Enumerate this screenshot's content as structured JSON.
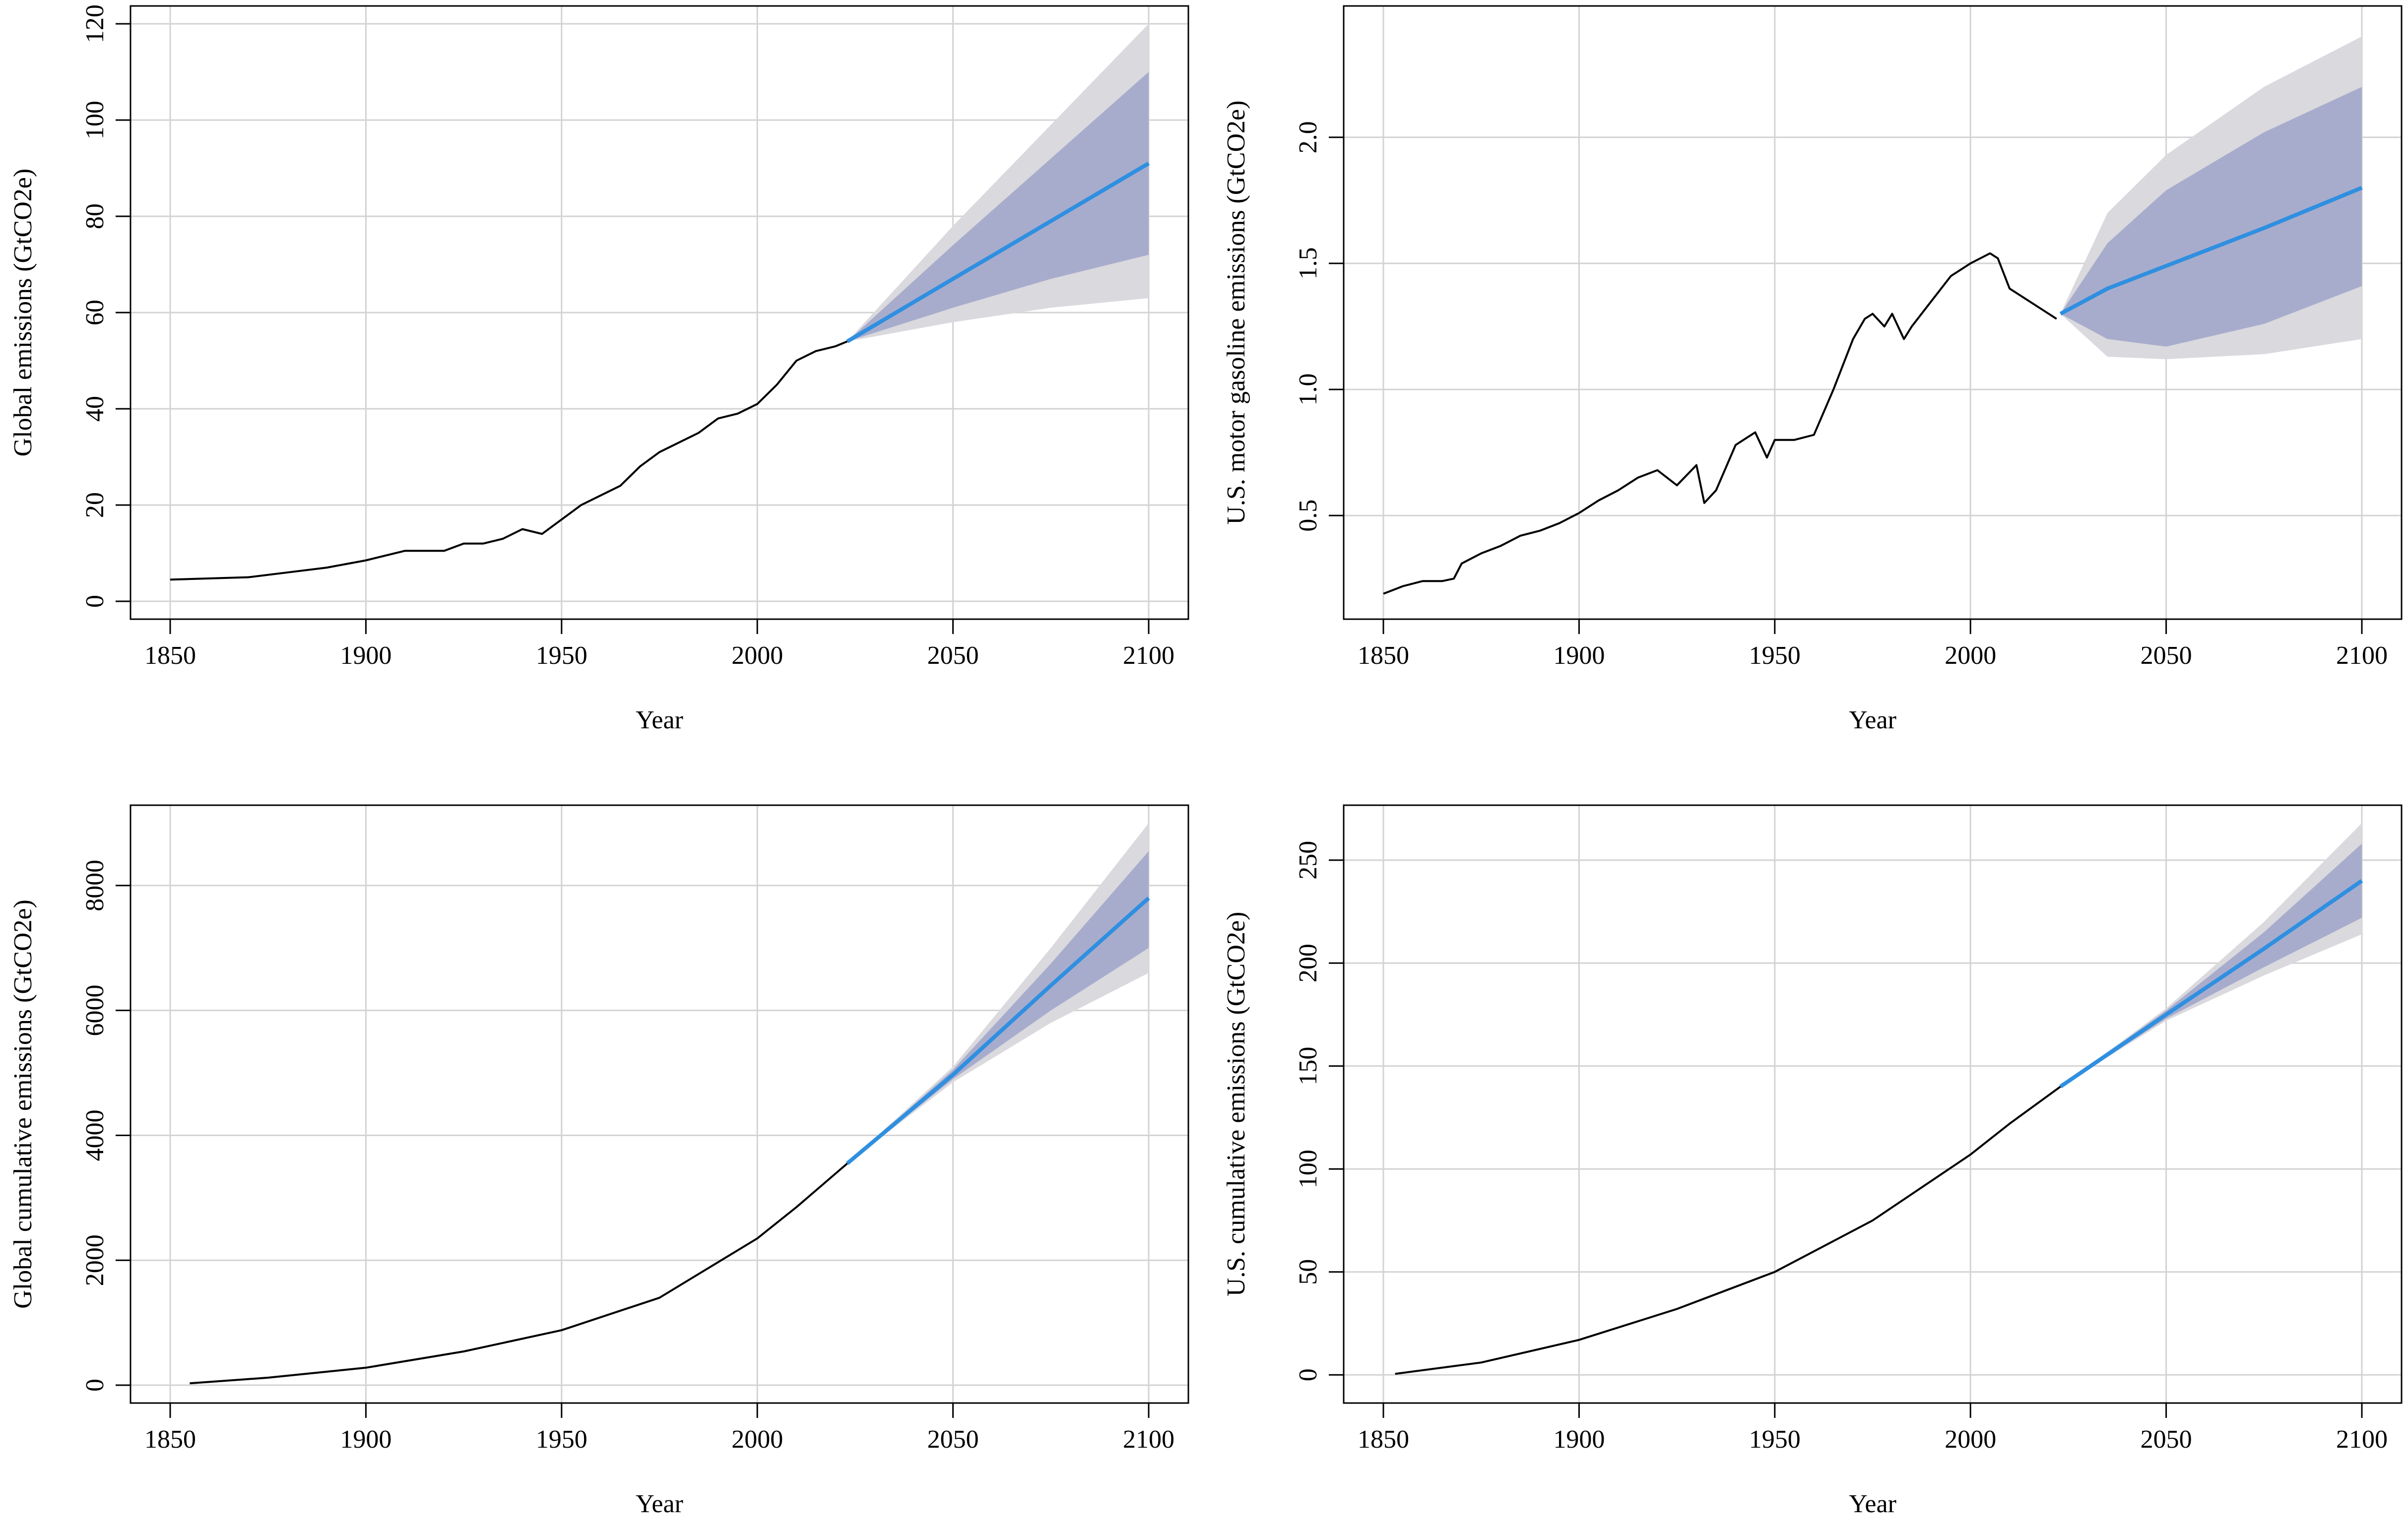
{
  "figure": {
    "panels": [
      {
        "id": "global-emissions",
        "xlabel": "Year",
        "ylabel": "Global emissions (GtCO2e)"
      },
      {
        "id": "us-gasoline-emissions",
        "xlabel": "Year",
        "ylabel": "U.S. motor gasoline emissions (GtCO2e)"
      },
      {
        "id": "global-cumulative",
        "xlabel": "Year",
        "ylabel": "Global cumulative emissions (GtCO2e)"
      },
      {
        "id": "us-cumulative",
        "xlabel": "Year",
        "ylabel": "U.S. cumulative emissions (GtCO2e)"
      }
    ]
  },
  "colors": {
    "history": "#000000",
    "forecast": "#2f8fe0",
    "band_inner": "#a8accc",
    "band_outer": "#d9d9de",
    "grid": "#d3d3d3",
    "frame": "#000000"
  },
  "chart_data": [
    {
      "type": "line",
      "xlabel": "Year",
      "ylabel": "Global emissions (GtCO2e)",
      "xlim": [
        1850,
        2100
      ],
      "ylim": [
        0,
        120
      ],
      "xticks": [
        1850,
        1900,
        1950,
        2000,
        2050,
        2100
      ],
      "yticks": [
        0,
        20,
        40,
        60,
        80,
        100,
        120
      ],
      "grid": true,
      "history": {
        "x": [
          1850,
          1870,
          1880,
          1890,
          1900,
          1910,
          1920,
          1925,
          1930,
          1935,
          1940,
          1945,
          1950,
          1955,
          1960,
          1965,
          1970,
          1975,
          1980,
          1985,
          1990,
          1995,
          2000,
          2005,
          2010,
          2015,
          2020,
          2023
        ],
        "y": [
          4.5,
          5,
          6,
          7,
          8.5,
          10.5,
          10.5,
          12,
          12,
          13,
          15,
          14,
          17,
          20,
          22,
          24,
          28,
          31,
          33,
          35,
          38,
          39,
          41,
          45,
          50,
          52,
          53,
          54
        ]
      },
      "forecast": {
        "x": [
          2023,
          2050,
          2075,
          2100
        ],
        "median": [
          54,
          67,
          79,
          91
        ],
        "inner_lower": [
          54,
          61,
          67,
          72
        ],
        "inner_upper": [
          54,
          74,
          92,
          110
        ],
        "outer_lower": [
          54,
          58,
          61,
          63
        ],
        "outer_upper": [
          54,
          78,
          99,
          120
        ]
      }
    },
    {
      "type": "line",
      "xlabel": "Year",
      "ylabel": "U.S. motor gasoline emissions (GtCO2e)",
      "xlim": [
        1850,
        2100
      ],
      "ylim": [
        0.16,
        2.45
      ],
      "xticks": [
        1850,
        1900,
        1950,
        2000,
        2050,
        2100
      ],
      "yticks": [
        0.5,
        1.0,
        1.5,
        2.0
      ],
      "ytick_labels": [
        "0.5",
        "1.0",
        "1.5",
        "2.0"
      ],
      "grid": true,
      "history": {
        "x": [
          1850,
          1855,
          1860,
          1865,
          1868,
          1870,
          1875,
          1880,
          1885,
          1890,
          1895,
          1900,
          1905,
          1910,
          1915,
          1920,
          1925,
          1930,
          1932,
          1935,
          1940,
          1945,
          1948,
          1950,
          1955,
          1960,
          1965,
          1970,
          1973,
          1975,
          1978,
          1980,
          1983,
          1985,
          1990,
          1995,
          2000,
          2005,
          2007,
          2010,
          2015,
          2020,
          2022
        ],
        "y": [
          0.19,
          0.22,
          0.24,
          0.24,
          0.25,
          0.31,
          0.35,
          0.38,
          0.42,
          0.44,
          0.47,
          0.51,
          0.56,
          0.6,
          0.65,
          0.68,
          0.62,
          0.7,
          0.55,
          0.6,
          0.78,
          0.83,
          0.73,
          0.8,
          0.8,
          0.82,
          1.0,
          1.2,
          1.28,
          1.3,
          1.25,
          1.3,
          1.2,
          1.25,
          1.35,
          1.45,
          1.5,
          1.54,
          1.52,
          1.4,
          1.35,
          1.3,
          1.28
        ]
      },
      "forecast": {
        "x": [
          2023,
          2035,
          2050,
          2075,
          2100
        ],
        "median": [
          1.3,
          1.4,
          1.49,
          1.64,
          1.8
        ],
        "inner_lower": [
          1.3,
          1.2,
          1.17,
          1.26,
          1.41
        ],
        "inner_upper": [
          1.3,
          1.58,
          1.79,
          2.02,
          2.2
        ],
        "outer_lower": [
          1.3,
          1.13,
          1.12,
          1.14,
          1.2
        ],
        "outer_upper": [
          1.3,
          1.7,
          1.93,
          2.2,
          2.4
        ]
      }
    },
    {
      "type": "line",
      "xlabel": "Year",
      "ylabel": "Global cumulative emissions (GtCO2e)",
      "xlim": [
        1850,
        2100
      ],
      "ylim": [
        0,
        9000
      ],
      "xticks": [
        1850,
        1900,
        1950,
        2000,
        2050,
        2100
      ],
      "yticks": [
        0,
        2000,
        4000,
        6000,
        8000
      ],
      "grid": true,
      "history": {
        "x": [
          1855,
          1875,
          1900,
          1925,
          1950,
          1975,
          2000,
          2010,
          2023
        ],
        "y": [
          30,
          120,
          280,
          540,
          880,
          1400,
          2350,
          2850,
          3550
        ]
      },
      "forecast": {
        "x": [
          2023,
          2050,
          2075,
          2100
        ],
        "median": [
          3550,
          4970,
          6400,
          7800
        ],
        "inner_lower": [
          3550,
          4900,
          6000,
          7000
        ],
        "inner_upper": [
          3550,
          5050,
          6750,
          8550
        ],
        "outer_lower": [
          3550,
          4850,
          5800,
          6600
        ],
        "outer_upper": [
          3550,
          5100,
          7000,
          9000
        ]
      }
    },
    {
      "type": "line",
      "xlabel": "Year",
      "ylabel": "U.S. cumulative emissions (GtCO2e)",
      "xlim": [
        1850,
        2100
      ],
      "ylim": [
        -5,
        268
      ],
      "xticks": [
        1850,
        1900,
        1950,
        2000,
        2050,
        2100
      ],
      "yticks": [
        0,
        50,
        100,
        150,
        200,
        250
      ],
      "grid": true,
      "history": {
        "x": [
          1853,
          1875,
          1900,
          1925,
          1950,
          1975,
          2000,
          2010,
          2023
        ],
        "y": [
          0.5,
          6,
          17,
          32,
          50,
          75,
          107,
          122,
          140
        ]
      },
      "forecast": {
        "x": [
          2023,
          2050,
          2075,
          2100
        ],
        "median": [
          140,
          175,
          207,
          240
        ],
        "inner_lower": [
          140,
          173,
          198,
          222
        ],
        "inner_upper": [
          140,
          177,
          215,
          258
        ],
        "outer_lower": [
          140,
          172,
          194,
          214
        ],
        "outer_upper": [
          140,
          178,
          220,
          268
        ]
      }
    }
  ]
}
